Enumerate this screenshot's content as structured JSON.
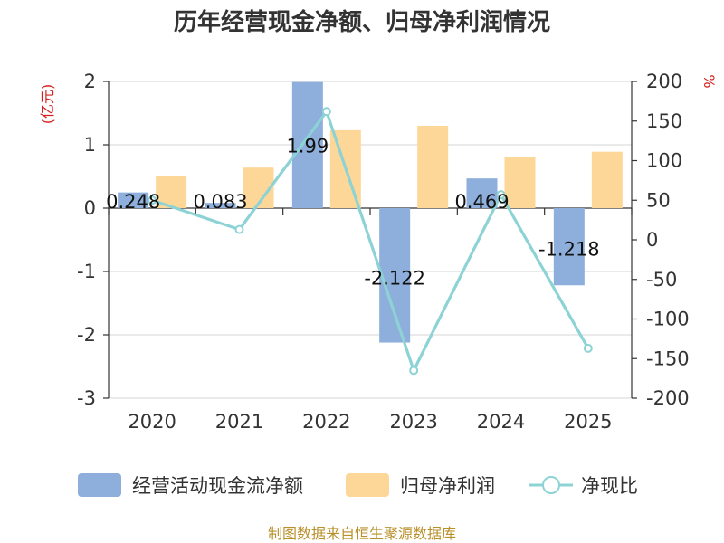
{
  "chart_data": {
    "type": "bar",
    "title": "历年经营现金净额、归母净利润情况",
    "categories": [
      "2020",
      "2021",
      "2022",
      "2023",
      "2024",
      "2025"
    ],
    "y_left": {
      "unit": "(亿元)",
      "ticks": [
        2,
        1,
        0,
        -1,
        -2,
        -3
      ],
      "ylim": [
        -3,
        2
      ]
    },
    "y_right": {
      "unit": "%",
      "ticks": [
        200,
        150,
        100,
        50,
        0,
        -50,
        -100,
        -150,
        -200
      ],
      "ylim": [
        -200,
        200
      ]
    },
    "series": [
      {
        "name": "经营活动现金流净额",
        "type": "bar",
        "axis": "left",
        "color": "#8eaedb",
        "values": [
          0.248,
          0.083,
          1.99,
          -2.122,
          0.469,
          -1.218
        ],
        "labels": [
          "0.248",
          "0.083",
          "1.99",
          "-2.122",
          "0.469",
          "-1.218"
        ]
      },
      {
        "name": "归母净利润",
        "type": "bar",
        "axis": "left",
        "color": "#fdd798",
        "values": [
          0.5,
          0.64,
          1.23,
          1.3,
          0.81,
          0.89
        ]
      },
      {
        "name": "净现比",
        "type": "line",
        "axis": "right",
        "color": "#8dd3d5",
        "values": [
          50,
          13,
          162,
          -165,
          57,
          -137
        ]
      }
    ],
    "source": "制图数据来自恒生聚源数据库"
  }
}
